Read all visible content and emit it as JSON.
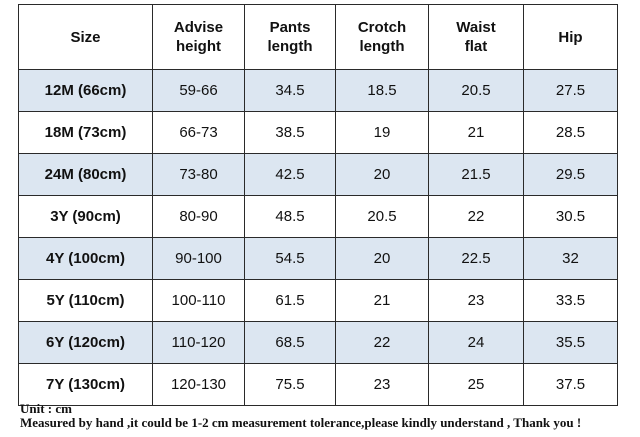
{
  "table": {
    "headers": [
      [
        "Size"
      ],
      [
        "Advise",
        "height"
      ],
      [
        "Pants",
        "length"
      ],
      [
        "Crotch",
        "length"
      ],
      [
        "Waist",
        "flat"
      ],
      [
        "Hip"
      ]
    ],
    "rows": [
      [
        "12M (66cm)",
        "59-66",
        "34.5",
        "18.5",
        "20.5",
        "27.5"
      ],
      [
        "18M (73cm)",
        "66-73",
        "38.5",
        "19",
        "21",
        "28.5"
      ],
      [
        "24M (80cm)",
        "73-80",
        "42.5",
        "20",
        "21.5",
        "29.5"
      ],
      [
        "3Y (90cm)",
        "80-90",
        "48.5",
        "20.5",
        "22",
        "30.5"
      ],
      [
        "4Y (100cm)",
        "90-100",
        "54.5",
        "20",
        "22.5",
        "32"
      ],
      [
        "5Y (110cm)",
        "100-110",
        "61.5",
        "21",
        "23",
        "33.5"
      ],
      [
        "6Y (120cm)",
        "110-120",
        "68.5",
        "22",
        "24",
        "35.5"
      ],
      [
        "7Y (130cm)",
        "120-130",
        "75.5",
        "23",
        "25",
        "37.5"
      ]
    ],
    "shaded_row_color": "#dce6f1"
  },
  "notes": {
    "unit": "Unit : cm",
    "tolerance": "Measured by hand ,it could be 1-2 cm measurement tolerance,please kindly understand , Thank you !"
  }
}
